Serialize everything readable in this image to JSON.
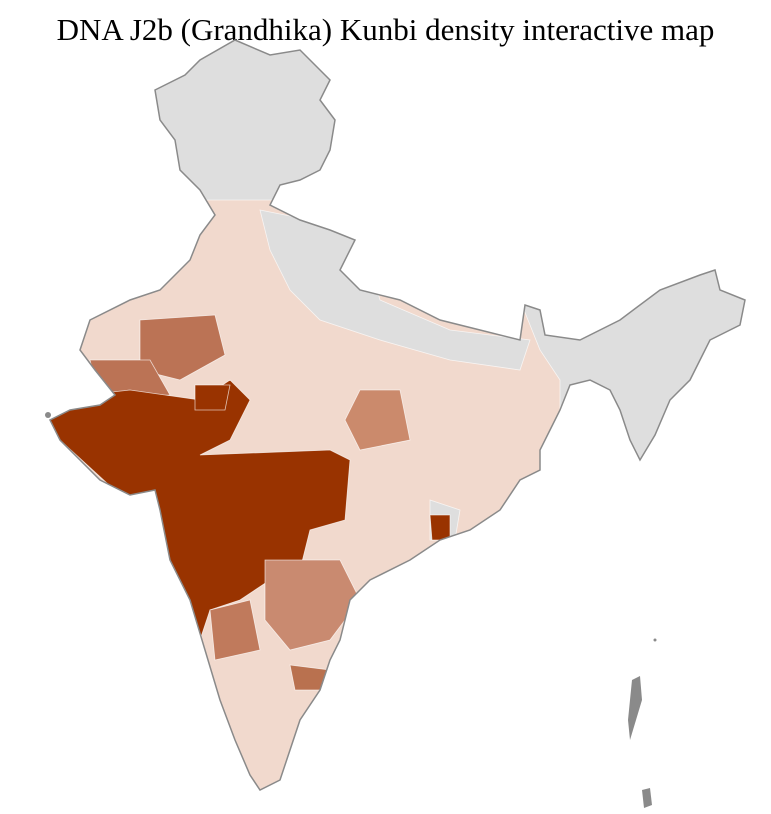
{
  "title": "DNA J2b (Grandhika) Kunbi density interactive map"
}
